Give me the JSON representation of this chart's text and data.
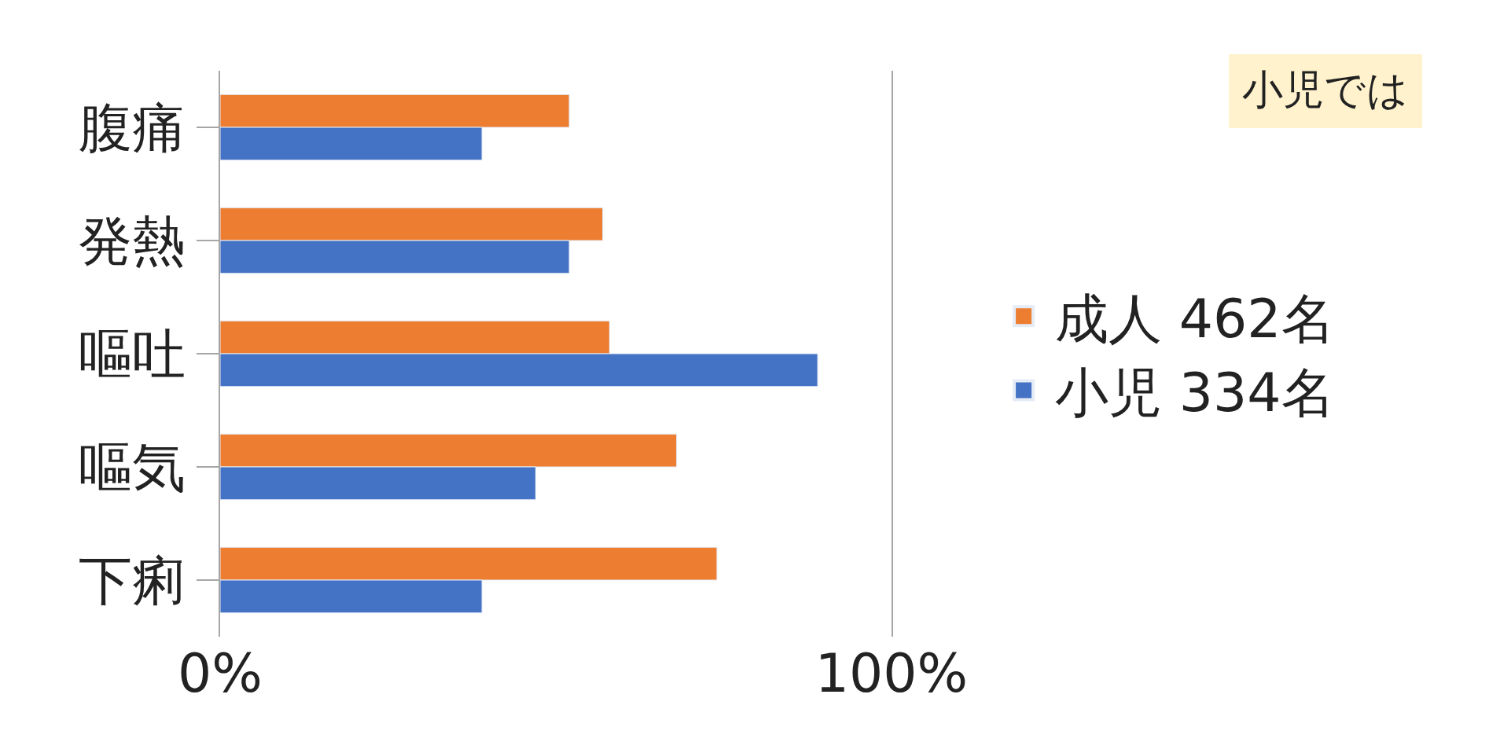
{
  "chart_data": {
    "type": "bar",
    "orientation": "horizontal",
    "categories": [
      "腹痛",
      "発熱",
      "嘔吐",
      "嘔気",
      "下痢"
    ],
    "series": [
      {
        "name": "成人 462名",
        "color": "#ed7d31",
        "values": [
          52,
          57,
          58,
          68,
          74
        ]
      },
      {
        "name": "小児 334名",
        "color": "#4472c4",
        "values": [
          39,
          52,
          89,
          47,
          39
        ]
      }
    ],
    "xlim": [
      0,
      100
    ],
    "xticks": [
      {
        "value": 0,
        "label": "0%"
      },
      {
        "value": 100,
        "label": "100%"
      }
    ],
    "legend": "right",
    "annotations": [
      "小児では"
    ]
  }
}
